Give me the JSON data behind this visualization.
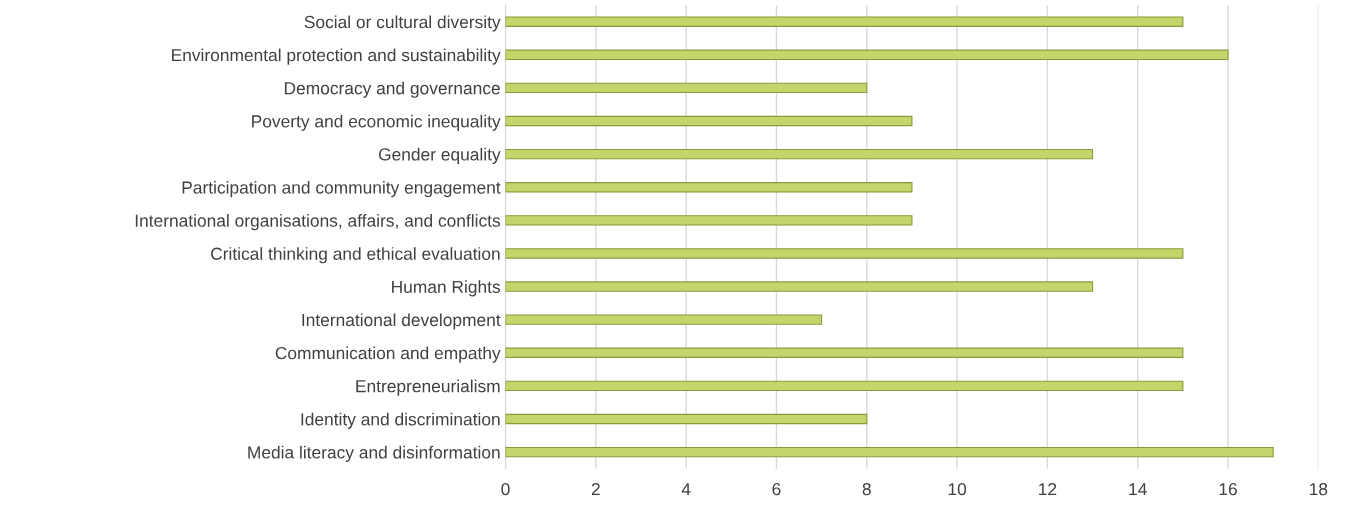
{
  "chart_data": {
    "type": "bar",
    "orientation": "horizontal",
    "categories": [
      "Social or cultural diversity",
      "Environmental protection and sustainability",
      "Democracy and governance",
      "Poverty and economic inequality",
      "Gender equality",
      "Participation and community engagement",
      "International organisations, affairs, and conflicts",
      "Critical thinking and ethical evaluation",
      "Human Rights",
      "International development",
      "Communication and empathy",
      "Entrepreneurialism",
      "Identity and discrimination",
      "Media literacy and disinformation"
    ],
    "values": [
      15,
      16,
      8,
      9,
      13,
      9,
      9,
      15,
      13,
      7,
      15,
      15,
      8,
      17
    ],
    "color": "#c3d66b",
    "xlim": [
      0,
      18
    ],
    "xticks": [
      0,
      2,
      4,
      6,
      8,
      10,
      12,
      14,
      16,
      18
    ],
    "grid": "x",
    "legend": false
  }
}
